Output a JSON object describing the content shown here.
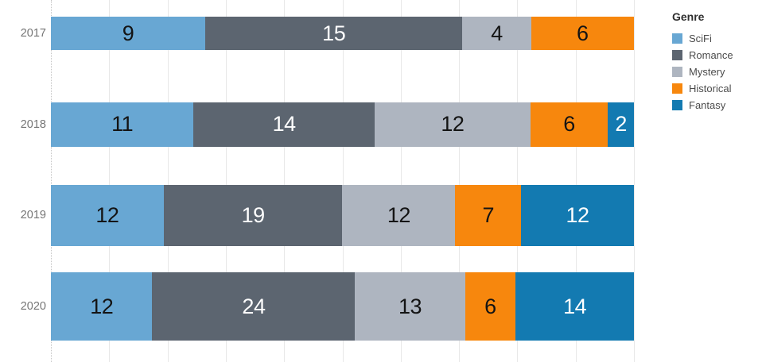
{
  "chart_data": {
    "type": "bar",
    "orientation": "horizontal",
    "stacking": "percent_of_row_total",
    "bar_thickness_encodes": "row_total",
    "categories": [
      "2017",
      "2018",
      "2019",
      "2020"
    ],
    "row_totals": [
      34,
      45,
      62,
      69
    ],
    "series": [
      {
        "name": "SciFi",
        "color": "#68a7d3",
        "label_color": "#141414",
        "values": [
          9,
          11,
          12,
          12
        ]
      },
      {
        "name": "Romance",
        "color": "#5c6570",
        "label_color": "#ffffff",
        "values": [
          15,
          14,
          19,
          24
        ]
      },
      {
        "name": "Mystery",
        "color": "#aeb5c0",
        "label_color": "#141414",
        "values": [
          4,
          12,
          12,
          13
        ]
      },
      {
        "name": "Historical",
        "color": "#f7870d",
        "label_color": "#141414",
        "values": [
          6,
          6,
          7,
          6
        ]
      },
      {
        "name": "Fantasy",
        "color": "#137ab1",
        "label_color": "#ffffff",
        "values": [
          0,
          2,
          12,
          14
        ]
      }
    ],
    "legend": {
      "title": "Genre",
      "position": "top-right",
      "items": [
        "SciFi",
        "Romance",
        "Mystery",
        "Historical",
        "Fantasy"
      ]
    },
    "axis": {
      "x_range_percent": [
        0,
        100
      ],
      "x_gridline_step_percent": 10,
      "zero_line_style": "dotted",
      "grid": true
    }
  }
}
